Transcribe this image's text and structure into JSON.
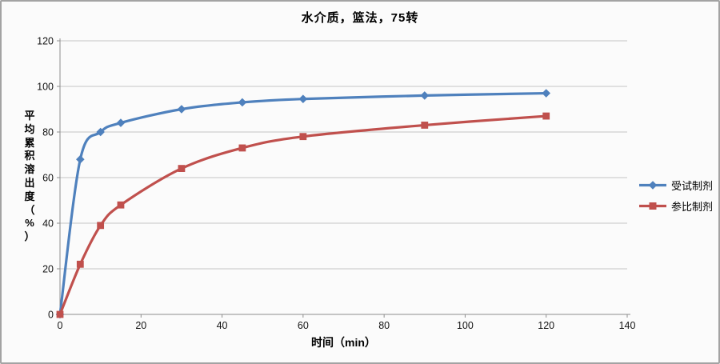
{
  "chart_data": {
    "type": "line",
    "title": "水介质，篮法，75转",
    "xlabel": "时间（min）",
    "ylabel": "平均累积溶出度（%）",
    "x": [
      0,
      5,
      10,
      15,
      30,
      45,
      60,
      90,
      120
    ],
    "series": [
      {
        "name": "受试制剂",
        "color": "#4f81bd",
        "marker": "diamond",
        "values": [
          0,
          68,
          80,
          84,
          90,
          93,
          94.5,
          96,
          97
        ]
      },
      {
        "name": "参比制剂",
        "color": "#c0504d",
        "marker": "square",
        "values": [
          0,
          22,
          39,
          48,
          64,
          73,
          78,
          83,
          87
        ]
      }
    ],
    "xlim": [
      0,
      140
    ],
    "ylim": [
      0,
      120
    ],
    "xticks": [
      0,
      20,
      40,
      60,
      80,
      100,
      120,
      140
    ],
    "yticks": [
      0,
      20,
      40,
      60,
      80,
      100,
      120
    ],
    "grid": true,
    "smooth_lines": true,
    "legend_position": "right",
    "colors": {
      "grid": "#c4c4c4",
      "axis": "#8c8c8c",
      "background": "#fbfbfb",
      "border": "#a3a3a3",
      "text": "#000000"
    }
  }
}
